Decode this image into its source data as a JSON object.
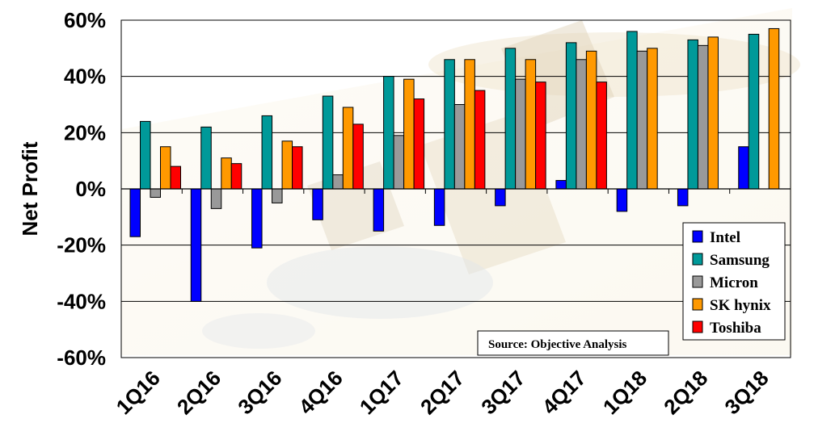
{
  "chart_data": {
    "type": "bar",
    "ylabel": "Net Profit",
    "ylim": [
      -60,
      60
    ],
    "yticks": [
      "60%",
      "40%",
      "20%",
      "0%",
      "-20%",
      "-40%",
      "-60%"
    ],
    "ytick_values": [
      60,
      40,
      20,
      0,
      -20,
      -40,
      -60
    ],
    "categories": [
      "1Q16",
      "2Q16",
      "3Q16",
      "4Q16",
      "1Q17",
      "2Q17",
      "3Q17",
      "4Q17",
      "1Q18",
      "2Q18",
      "3Q18"
    ],
    "series": [
      {
        "name": "Intel",
        "color": "#0000ff",
        "values": [
          -17,
          -40,
          -21,
          -11,
          -15,
          -13,
          -6,
          3,
          -8,
          -6,
          15
        ]
      },
      {
        "name": "Samsung",
        "color": "#009999",
        "values": [
          24,
          22,
          26,
          33,
          40,
          46,
          50,
          52,
          56,
          53,
          55
        ]
      },
      {
        "name": "Micron",
        "color": "#999999",
        "values": [
          -3,
          -7,
          -5,
          5,
          19,
          30,
          39,
          46,
          49,
          51,
          null
        ]
      },
      {
        "name": "SK hynix",
        "color": "#ff9900",
        "values": [
          15,
          11,
          17,
          29,
          39,
          46,
          46,
          49,
          50,
          54,
          57
        ]
      },
      {
        "name": "Toshiba",
        "color": "#ff0000",
        "values": [
          8,
          9,
          15,
          23,
          32,
          35,
          38,
          38,
          null,
          null,
          null
        ]
      }
    ],
    "legend": {
      "position": "right"
    },
    "grid": true,
    "annotation": "Source: Objective Analysis"
  }
}
